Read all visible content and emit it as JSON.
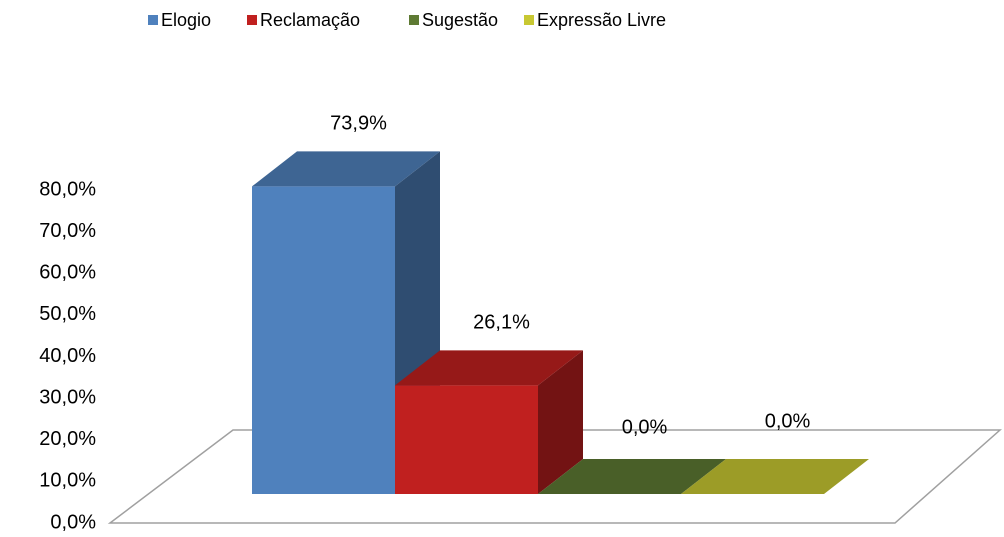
{
  "chart_data": {
    "type": "bar3d",
    "series": [
      {
        "name": "Elogio",
        "color": "#4f81bd",
        "values": [
          73.9
        ],
        "value_labels": [
          "73,9%"
        ]
      },
      {
        "name": "Reclamação",
        "color": "#c0201f",
        "values": [
          26.1
        ],
        "value_labels": [
          "26,1%"
        ]
      },
      {
        "name": "Sugestão",
        "color": "#5e7a33",
        "values": [
          0
        ],
        "value_labels": [
          "0,0%"
        ]
      },
      {
        "name": "Expressão Livre",
        "color": "#c8c832",
        "values": [
          0
        ],
        "value_labels": [
          "0,0%"
        ]
      }
    ],
    "ylim": [
      0,
      80
    ],
    "yticks": [
      {
        "value": 0,
        "label": "0,0%"
      },
      {
        "value": 10,
        "label": "10,0%"
      },
      {
        "value": 20,
        "label": "20,0%"
      },
      {
        "value": 30,
        "label": "30,0%"
      },
      {
        "value": 40,
        "label": "40,0%"
      },
      {
        "value": 50,
        "label": "50,0%"
      },
      {
        "value": 60,
        "label": "60,0%"
      },
      {
        "value": 70,
        "label": "70,0%"
      },
      {
        "value": 80,
        "label": "80,0%"
      }
    ],
    "legend": "top"
  }
}
